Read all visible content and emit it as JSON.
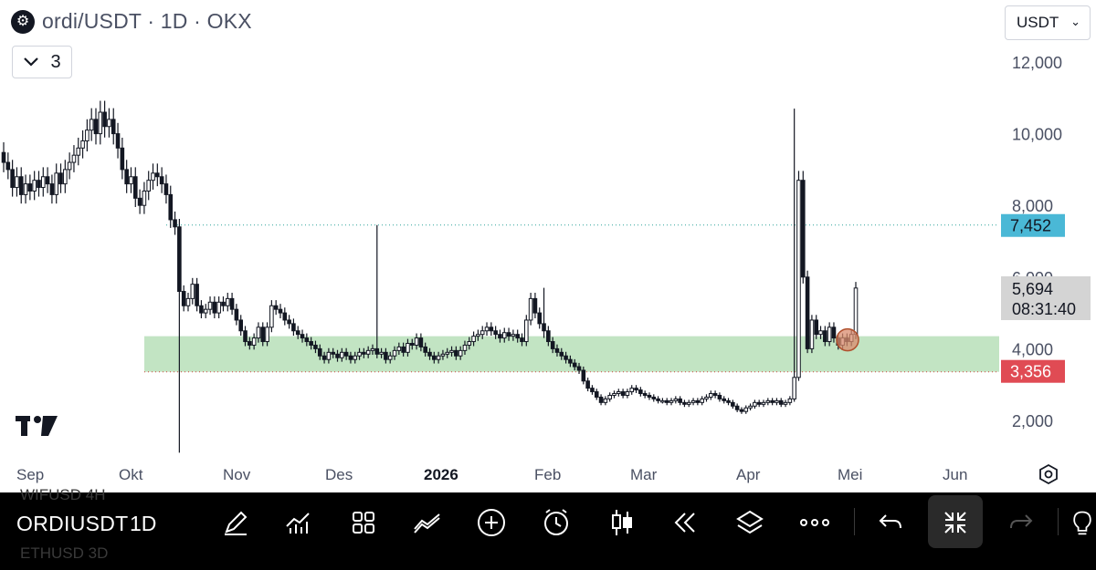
{
  "header": {
    "title": "ordi/USDT · 1D · OKX",
    "logo_icon": "okx-exchange-icon",
    "collapse_count": "3",
    "currency": "USDT"
  },
  "chart_data": {
    "type": "candlestick",
    "symbol": "ordi/USDT",
    "interval": "1D",
    "exchange": "OKX",
    "ylim": [
      1000,
      12500
    ],
    "y_ticks": [
      "12,000",
      "10,000",
      "8,000",
      "6,000",
      "4,000",
      "2,000"
    ],
    "x_ticks": [
      "Sep",
      "Okt",
      "Nov",
      "Des",
      "2026",
      "Feb",
      "Mar",
      "Apr",
      "Mei",
      "Jun"
    ],
    "grid": false,
    "price_labels": [
      {
        "label": "7,452",
        "value": 7452,
        "color": "#4ab8d6"
      },
      {
        "label": "3,356",
        "value": 3356,
        "color": "#e04b54"
      }
    ],
    "current_price": {
      "label": "5,694",
      "countdown": "08:31:40"
    },
    "support_zone": {
      "low": 3356,
      "high": 4350,
      "color": "#b7dfb9"
    },
    "highlight_marker": {
      "value": 4250,
      "color": "#d98b6e"
    },
    "series": [
      {
        "name": "",
        "close": [
          9200,
          9000,
          8500,
          8800,
          8300,
          8600,
          8400,
          8700,
          8500,
          8800,
          8600,
          8300,
          8900,
          8600,
          9000,
          9200,
          9400,
          9600,
          9800,
          10100,
          10400,
          10000,
          10600,
          10200,
          10400,
          10000,
          9600,
          9000,
          8600,
          8800,
          8200,
          8000,
          8400,
          8700,
          8900,
          8800,
          8600,
          8300,
          7600,
          7400,
          5600,
          5200,
          5400,
          5800,
          5200,
          5000,
          5100,
          5300,
          5000,
          5300,
          5200,
          5400,
          5100,
          4800,
          4500,
          4200,
          4100,
          4300,
          4600,
          4200,
          4600,
          5200,
          5100,
          5000,
          4800,
          4700,
          4500,
          4400,
          4300,
          4200,
          4100,
          4000,
          3800,
          3700,
          3900,
          3850,
          3750,
          3900,
          3800,
          3700,
          3800,
          3900,
          3850,
          3950,
          4000,
          3850,
          3900,
          3700,
          3800,
          3950,
          4050,
          3900,
          4150,
          4100,
          4300,
          4050,
          3900,
          3800,
          3700,
          3800,
          3850,
          3900,
          3950,
          3800,
          3950,
          4100,
          4200,
          4350,
          4400,
          4500,
          4600,
          4500,
          4400,
          4300,
          4450,
          4350,
          4400,
          4300,
          4200,
          4800,
          5400,
          5000,
          4700,
          4500,
          4200,
          4000,
          3900,
          3800,
          3700,
          3600,
          3500,
          3400,
          3100,
          2900,
          2800,
          2650,
          2500,
          2600,
          2700,
          2750,
          2800,
          2700,
          2800,
          2900,
          2850,
          2750,
          2700,
          2650,
          2600,
          2550,
          2550,
          2500,
          2550,
          2600,
          2500,
          2450,
          2500,
          2550,
          2500,
          2600,
          2650,
          2750,
          2700,
          2600,
          2550,
          2500,
          2400,
          2300,
          2250,
          2350,
          2400,
          2500,
          2450,
          2500,
          2550,
          2500,
          2550,
          2450,
          2500,
          2600,
          3200,
          8700,
          6000,
          4000,
          4800,
          4400,
          4500,
          4200,
          4600,
          4300,
          4100,
          4300,
          4200,
          4400,
          5694
        ]
      }
    ],
    "annotations": []
  },
  "toolbar": {
    "symbol": "ORDIUSDT",
    "interval": "1D",
    "ghost_rows": [
      "WIFUSD  4H",
      "ETHUSD  3D"
    ],
    "icons": [
      "drawing-pen-icon",
      "indicators-chart-icon",
      "layouts-grid-icon",
      "compare-line-icon",
      "add-plus-icon",
      "alert-clock-icon",
      "candlestick-type-icon",
      "replay-rewind-icon",
      "layers-icon",
      "more-dots-icon",
      "undo-icon",
      "collapse-arrows-icon",
      "redo-icon",
      "lightbulb-icon"
    ]
  }
}
